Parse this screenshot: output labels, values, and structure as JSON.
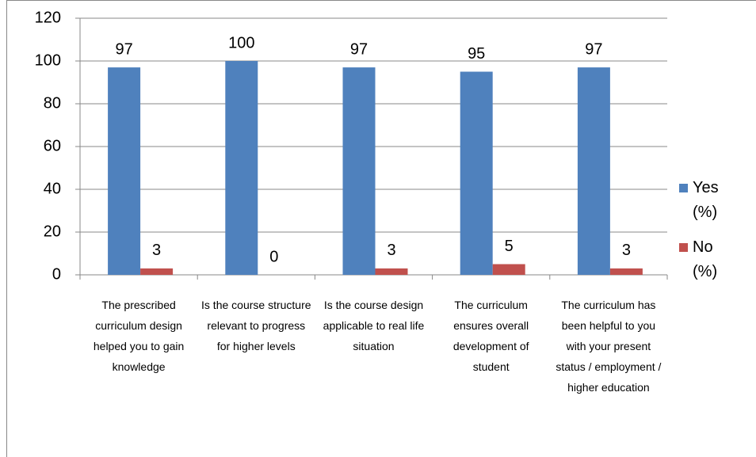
{
  "chart_data": {
    "type": "bar",
    "categories": [
      "The prescribed curriculum design helped you to gain knowledge",
      "Is the course structure relevant to progress for higher levels",
      "Is the course design applicable to real life situation",
      "The curriculum ensures overall development of student",
      "The curriculum has been helpful to you with your present status / employment / higher education"
    ],
    "series": [
      {
        "name": "Yes (%)",
        "color": "#4f81bd",
        "values": [
          97,
          100,
          97,
          95,
          97
        ]
      },
      {
        "name": "No (%)",
        "color": "#c0504d",
        "values": [
          3,
          0,
          3,
          5,
          3
        ]
      }
    ],
    "ylim": [
      0,
      120
    ],
    "yticks": [
      0,
      20,
      40,
      60,
      80,
      100,
      120
    ],
    "grid": true,
    "legend": "right"
  }
}
